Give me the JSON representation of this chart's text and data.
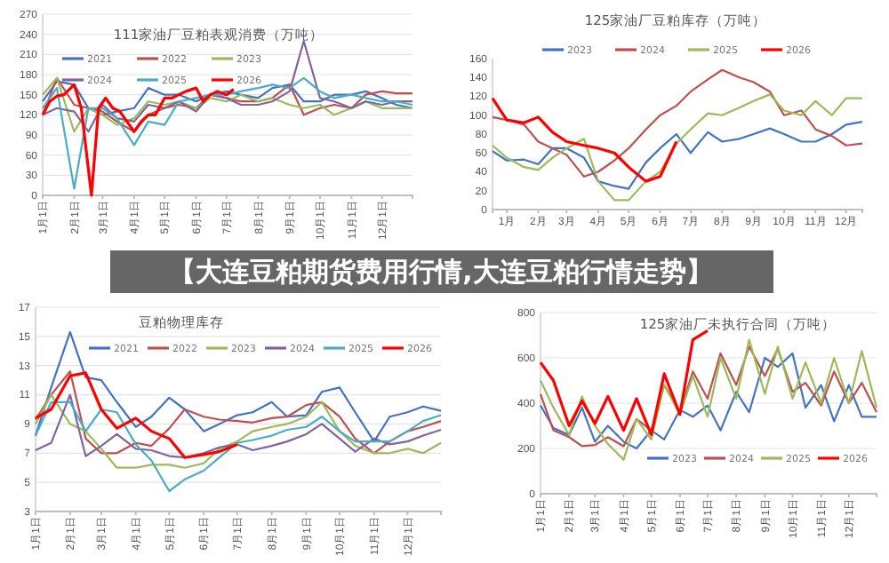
{
  "chart_data": [
    {
      "type": "line",
      "title": "111家油厂豆粕表观消费（万吨）",
      "x": [
        "--01-01",
        "--01-15",
        "--02-01",
        "--02-15",
        "--03-01",
        "--03-15",
        "--04-01",
        "--04-15",
        "--05-01",
        "--05-15",
        "--06-01",
        "--06-15",
        "--07-01",
        "--07-15",
        "--08-01",
        "--08-15",
        "--09-01",
        "--09-15",
        "--10-01",
        "--10-15",
        "--11-01",
        "--11-15",
        "--12-01",
        "--12-15",
        "--12-31"
      ],
      "xlim": [
        "--01-01",
        "--12-31"
      ],
      "xticks": [
        {
          "value": "--01-01",
          "label": "1月1日"
        },
        {
          "value": "--02-01",
          "label": "2月1日"
        },
        {
          "value": "--03-01",
          "label": "3月1日"
        },
        {
          "value": "--04-01",
          "label": "4月1日"
        },
        {
          "value": "--05-01",
          "label": "5月1日"
        },
        {
          "value": "--06-01",
          "label": "6月1日"
        },
        {
          "value": "--07-01",
          "label": "7月1日"
        },
        {
          "value": "--08-01",
          "label": "8月1日"
        },
        {
          "value": "--09-01",
          "label": "9月1日"
        },
        {
          "value": "--10-01",
          "label": "10月1日"
        },
        {
          "value": "--11-01",
          "label": "11月1日"
        },
        {
          "value": "--12-01",
          "label": "12月1日"
        }
      ],
      "ylim": [
        0,
        270
      ],
      "yticks": [
        0,
        30,
        60,
        90,
        120,
        150,
        180,
        210,
        240,
        270
      ],
      "grid": "y",
      "legend": "top left",
      "line_style": "solid",
      "marker": "none",
      "series": [
        {
          "name": "2021",
          "color": "#4472c4",
          "values": [
            140,
            170,
            165,
            130,
            120,
            125,
            130,
            160,
            150,
            150,
            140,
            150,
            155,
            150,
            145,
            160,
            165,
            140,
            140,
            150,
            150,
            155,
            145,
            135,
            130
          ]
        },
        {
          "name": "2022",
          "color": "#c0504d",
          "values": [
            120,
            175,
            135,
            130,
            125,
            110,
            95,
            120,
            130,
            135,
            130,
            150,
            145,
            140,
            140,
            145,
            165,
            120,
            130,
            135,
            130,
            150,
            155,
            152,
            152
          ]
        },
        {
          "name": "2023",
          "color": "#9bbb59",
          "values": [
            150,
            175,
            95,
            130,
            120,
            105,
            115,
            140,
            135,
            140,
            130,
            145,
            140,
            150,
            140,
            145,
            135,
            130,
            135,
            120,
            130,
            140,
            130,
            130,
            130
          ]
        },
        {
          "name": "2024",
          "color": "#8064a2",
          "values": [
            120,
            130,
            125,
            95,
            135,
            115,
            110,
            135,
            130,
            140,
            125,
            150,
            145,
            135,
            135,
            140,
            155,
            230,
            145,
            140,
            130,
            140,
            135,
            140,
            140
          ]
        },
        {
          "name": "2025",
          "color": "#4bacc6",
          "values": [
            130,
            160,
            10,
            130,
            130,
            115,
            75,
            110,
            105,
            140,
            145,
            150,
            150,
            155,
            160,
            165,
            160,
            175,
            155,
            145,
            150,
            145,
            140,
            140,
            135
          ]
        },
        {
          "name": "2026",
          "color": "#ff0000",
          "x": [
            "--01-01",
            "--01-08",
            "--01-15",
            "--01-22",
            "--02-01",
            "--02-08",
            "--02-18",
            "--02-25",
            "--03-04",
            "--03-11",
            "--03-18",
            "--03-25",
            "--04-01",
            "--04-08",
            "--04-15",
            "--04-22",
            "--05-01",
            "--05-08",
            "--05-15",
            "--05-22",
            "--06-01",
            "--06-08",
            "--06-15",
            "--06-22",
            "--07-01",
            "--07-08"
          ],
          "values": [
            120,
            140,
            148,
            150,
            165,
            130,
            0,
            130,
            145,
            130,
            125,
            110,
            95,
            110,
            120,
            120,
            145,
            145,
            150,
            155,
            160,
            140,
            150,
            155,
            150,
            158
          ]
        }
      ]
    },
    {
      "type": "line",
      "title": "125家油厂豆粕库存（万吨）",
      "x": [
        "--01-01",
        "--01-15",
        "--02-01",
        "--02-15",
        "--03-01",
        "--03-15",
        "--04-01",
        "--04-15",
        "--05-01",
        "--05-15",
        "--06-01",
        "--06-15",
        "--07-01",
        "--07-15",
        "--08-01",
        "--08-15",
        "--09-01",
        "--09-15",
        "--10-01",
        "--10-15",
        "--11-01",
        "--11-15",
        "--12-01",
        "--12-15",
        "--12-31"
      ],
      "xlim": [
        "--01-01",
        "--12-31"
      ],
      "xticks": [
        {
          "value": "--01-15",
          "label": "1月"
        },
        {
          "value": "--02-15",
          "label": "2月"
        },
        {
          "value": "--03-15",
          "label": "3月"
        },
        {
          "value": "--04-15",
          "label": "4月"
        },
        {
          "value": "--05-15",
          "label": "5月"
        },
        {
          "value": "--06-15",
          "label": "6月"
        },
        {
          "value": "--07-15",
          "label": "7月"
        },
        {
          "value": "--08-15",
          "label": "8月"
        },
        {
          "value": "--09-15",
          "label": "9月"
        },
        {
          "value": "--10-15",
          "label": "10月"
        },
        {
          "value": "--11-15",
          "label": "11月"
        },
        {
          "value": "--12-15",
          "label": "12月"
        }
      ],
      "ylim": [
        0,
        160
      ],
      "yticks": [
        0,
        20,
        40,
        60,
        80,
        100,
        120,
        140,
        160
      ],
      "grid": false,
      "legend": "top",
      "line_style": "solid",
      "marker": "none",
      "series": [
        {
          "name": "2023",
          "color": "#4472c4",
          "values": [
            62,
            52,
            53,
            48,
            65,
            65,
            55,
            30,
            25,
            22,
            50,
            65,
            80,
            60,
            82,
            72,
            75,
            80,
            86,
            80,
            72,
            72,
            80,
            90,
            93
          ]
        },
        {
          "name": "2024",
          "color": "#c0504d",
          "values": [
            98,
            95,
            90,
            72,
            65,
            58,
            35,
            40,
            52,
            65,
            85,
            100,
            110,
            125,
            138,
            148,
            140,
            135,
            125,
            100,
            105,
            85,
            78,
            68,
            70
          ]
        },
        {
          "name": "2025",
          "color": "#9bbb59",
          "values": [
            68,
            55,
            45,
            42,
            55,
            65,
            75,
            30,
            10,
            10,
            30,
            40,
            70,
            85,
            102,
            100,
            108,
            115,
            122,
            105,
            100,
            115,
            100,
            118,
            118
          ]
        },
        {
          "name": "2026",
          "color": "#ff0000",
          "values": [
            118,
            95,
            92,
            98,
            82,
            72,
            68,
            65,
            60,
            45,
            30,
            35,
            72,
            null,
            null,
            null,
            null,
            null,
            null,
            null,
            null,
            null,
            null,
            null,
            null
          ]
        }
      ]
    },
    {
      "type": "line",
      "title": "豆粕物理库存",
      "x": [
        "--01-01",
        "--01-15",
        "--02-01",
        "--02-15",
        "--03-01",
        "--03-15",
        "--04-01",
        "--04-15",
        "--05-01",
        "--05-15",
        "--06-01",
        "--06-15",
        "--07-01",
        "--07-15",
        "--08-01",
        "--08-15",
        "--09-01",
        "--09-15",
        "--10-01",
        "--10-15",
        "--11-01",
        "--11-15",
        "--12-01",
        "--12-15",
        "--12-31"
      ],
      "xlim": [
        "--01-01",
        "--12-31"
      ],
      "xticks": [
        {
          "value": "--01-01",
          "label": "1月1日"
        },
        {
          "value": "--02-01",
          "label": "2月1日"
        },
        {
          "value": "--03-01",
          "label": "3月1日"
        },
        {
          "value": "--04-01",
          "label": "4月1日"
        },
        {
          "value": "--05-01",
          "label": "5月1日"
        },
        {
          "value": "--06-01",
          "label": "6月1日"
        },
        {
          "value": "--07-01",
          "label": "7月1日"
        },
        {
          "value": "--08-01",
          "label": "8月1日"
        },
        {
          "value": "--09-01",
          "label": "9月1日"
        },
        {
          "value": "--10-01",
          "label": "10月1日"
        },
        {
          "value": "--11-01",
          "label": "11月1日"
        },
        {
          "value": "--12-01",
          "label": "12月1日"
        }
      ],
      "ylim": [
        3,
        17
      ],
      "yticks": [
        3,
        5,
        7,
        9,
        11,
        13,
        15,
        17
      ],
      "grid": "y",
      "legend": "top",
      "line_style": "solid",
      "marker": "none",
      "series": [
        {
          "name": "2021",
          "color": "#4472c4",
          "values": [
            8.2,
            11.5,
            15.3,
            12.2,
            12.0,
            10.5,
            8.8,
            9.5,
            10.8,
            10.0,
            8.5,
            9.0,
            9.6,
            9.8,
            10.5,
            9.5,
            9.6,
            11.2,
            11.5,
            9.8,
            7.8,
            9.5,
            9.8,
            10.2,
            9.9
          ]
        },
        {
          "name": "2022",
          "color": "#c0504d",
          "values": [
            9.3,
            11.0,
            12.6,
            8.0,
            7.0,
            7.0,
            7.7,
            7.5,
            8.7,
            10.0,
            9.5,
            9.3,
            9.2,
            9.1,
            9.4,
            9.5,
            10.3,
            10.5,
            9.5,
            8.0,
            7.0,
            7.8,
            8.5,
            8.8,
            9.2
          ]
        },
        {
          "name": "2023",
          "color": "#9bbb59",
          "values": [
            9.0,
            11.0,
            9.0,
            8.5,
            7.3,
            6.0,
            6.0,
            6.2,
            6.2,
            6.0,
            6.3,
            7.3,
            7.8,
            8.5,
            8.8,
            9.0,
            9.5,
            10.5,
            8.5,
            7.5,
            7.0,
            7.0,
            7.3,
            7.0,
            7.7
          ]
        },
        {
          "name": "2024",
          "color": "#8064a2",
          "values": [
            7.2,
            7.7,
            11.0,
            6.8,
            7.5,
            8.3,
            7.3,
            7.2,
            6.8,
            6.7,
            7.0,
            7.4,
            7.6,
            7.2,
            7.5,
            7.8,
            8.3,
            9.0,
            8.0,
            7.1,
            8.0,
            7.6,
            7.8,
            8.2,
            8.6
          ]
        },
        {
          "name": "2025",
          "color": "#4bacc6",
          "values": [
            8.2,
            10.5,
            10.5,
            8.5,
            10.0,
            9.8,
            7.6,
            6.5,
            4.4,
            5.2,
            5.8,
            6.7,
            7.7,
            7.9,
            8.2,
            8.6,
            8.8,
            9.5,
            8.5,
            7.8,
            7.8,
            7.8,
            8.5,
            9.2,
            9.6
          ]
        },
        {
          "name": "2026",
          "color": "#ff0000",
          "values": [
            9.4,
            10.0,
            12.3,
            12.5,
            10.0,
            8.7,
            9.4,
            8.5,
            8.0,
            6.7,
            6.9,
            7.1,
            7.6,
            null,
            null,
            null,
            null,
            null,
            null,
            null,
            null,
            null,
            null,
            null,
            null
          ]
        }
      ]
    },
    {
      "type": "line",
      "title": "125家油厂未执行合同（万吨）",
      "x": [
        "--01-01",
        "--01-15",
        "--02-01",
        "--02-15",
        "--03-01",
        "--03-15",
        "--04-01",
        "--04-15",
        "--05-01",
        "--05-15",
        "--06-01",
        "--06-15",
        "--07-01",
        "--07-15",
        "--08-01",
        "--08-15",
        "--09-01",
        "--09-15",
        "--10-01",
        "--10-15",
        "--11-01",
        "--11-15",
        "--12-01",
        "--12-15",
        "--12-31"
      ],
      "xlim": [
        "--01-01",
        "--12-31"
      ],
      "xticks": [
        {
          "value": "--01-01",
          "label": "1月1日"
        },
        {
          "value": "--02-01",
          "label": "2月1日"
        },
        {
          "value": "--03-01",
          "label": "3月1日"
        },
        {
          "value": "--04-01",
          "label": "4月1日"
        },
        {
          "value": "--05-01",
          "label": "5月1日"
        },
        {
          "value": "--06-01",
          "label": "6月1日"
        },
        {
          "value": "--07-01",
          "label": "7月1日"
        },
        {
          "value": "--08-01",
          "label": "8月1日"
        },
        {
          "value": "--09-01",
          "label": "9月1日"
        },
        {
          "value": "--10-01",
          "label": "10月1日"
        },
        {
          "value": "--11-01",
          "label": "11月1日"
        },
        {
          "value": "--12-01",
          "label": "12月1日"
        }
      ],
      "ylim": [
        0,
        800
      ],
      "yticks": [
        0,
        200,
        400,
        600,
        800
      ],
      "grid": "y",
      "legend": "bottom",
      "line_style": "solid",
      "marker": "none",
      "series": [
        {
          "name": "2023",
          "color": "#4472c4",
          "values": [
            390,
            290,
            260,
            380,
            230,
            300,
            230,
            200,
            280,
            240,
            370,
            340,
            390,
            280,
            450,
            360,
            600,
            560,
            620,
            380,
            480,
            320,
            480,
            340,
            340
          ]
        },
        {
          "name": "2024",
          "color": "#c0504d",
          "values": [
            440,
            280,
            250,
            210,
            215,
            250,
            210,
            330,
            280,
            480,
            360,
            540,
            420,
            620,
            480,
            650,
            520,
            640,
            450,
            490,
            390,
            540,
            400,
            490,
            360
          ]
        },
        {
          "name": "2025",
          "color": "#9bbb59",
          "values": [
            500,
            380,
            260,
            430,
            300,
            220,
            150,
            330,
            240,
            480,
            350,
            520,
            340,
            600,
            420,
            680,
            440,
            650,
            420,
            580,
            400,
            600,
            400,
            630,
            380
          ]
        },
        {
          "name": "2026",
          "color": "#ff0000",
          "values": [
            580,
            500,
            300,
            410,
            310,
            430,
            280,
            420,
            260,
            530,
            350,
            680,
            720,
            null,
            null,
            null,
            null,
            null,
            null,
            null,
            null,
            null,
            null,
            null,
            null
          ]
        }
      ]
    },
    {
      "type": "other",
      "title": "【大连豆粕期货费用行情,大连豆粕行情走势】"
    }
  ]
}
